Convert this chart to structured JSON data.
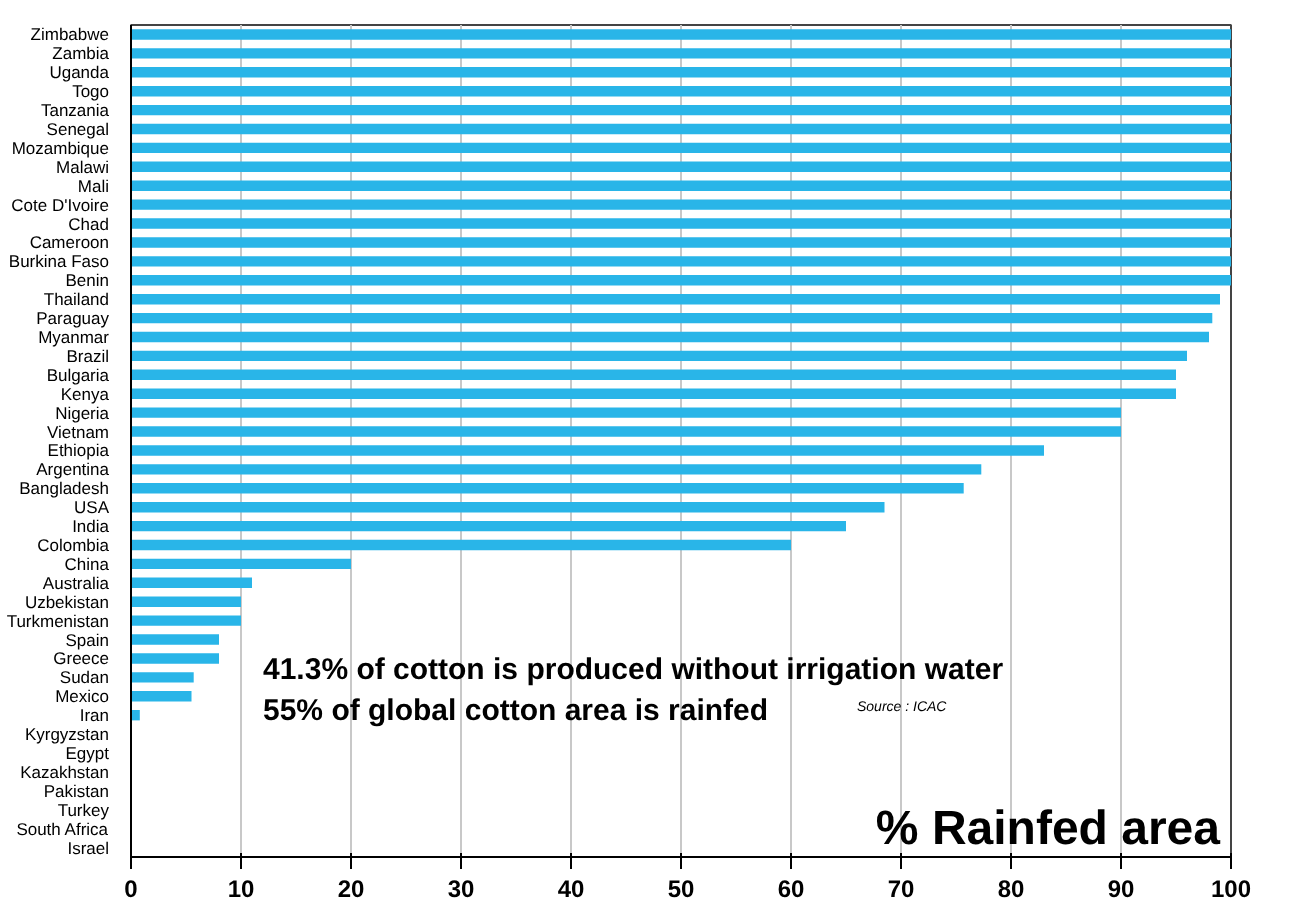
{
  "chart_data": {
    "type": "bar",
    "orientation": "horizontal",
    "title": "% Rainfed area",
    "annotations": [
      "41.3% of cotton is produced without irrigation water",
      "55% of global cotton area is rainfed",
      "Source : ICAC"
    ],
    "categories": [
      "Zimbabwe",
      "Zambia",
      "Uganda",
      "Togo",
      "Tanzania",
      "Senegal",
      "Mozambique",
      "Malawi",
      "Mali",
      "Cote D'Ivoire",
      "Chad",
      "Cameroon",
      "Burkina Faso",
      "Benin",
      "Thailand",
      "Paraguay",
      "Myanmar",
      "Brazil",
      "Bulgaria",
      "Kenya",
      "Nigeria",
      "Vietnam",
      "Ethiopia",
      "Argentina",
      "Bangladesh",
      "USA",
      "India",
      "Colombia",
      "China",
      "Australia",
      "Uzbekistan",
      "Turkmenistan",
      "Spain",
      "Greece",
      "Sudan",
      "Mexico",
      "Iran",
      "Kyrgyzstan",
      "Egypt",
      "Kazakhstan",
      "Pakistan",
      "Turkey",
      "South Africa",
      "Israel"
    ],
    "values": [
      100,
      100,
      100,
      100,
      100,
      100,
      100,
      100,
      100,
      100,
      100,
      100,
      100,
      100,
      99,
      98.3,
      98,
      96,
      95,
      95,
      90,
      90,
      83,
      77.3,
      75.7,
      68.5,
      65,
      60,
      20,
      11,
      10,
      10,
      8,
      8,
      5.7,
      5.5,
      0.8,
      0,
      0,
      0,
      0,
      0,
      0,
      0
    ],
    "color": "#29b5e8",
    "xlim": [
      0,
      100
    ],
    "xticks": [
      0,
      10,
      20,
      30,
      40,
      50,
      60,
      70,
      80,
      90,
      100
    ],
    "grid": "x"
  }
}
